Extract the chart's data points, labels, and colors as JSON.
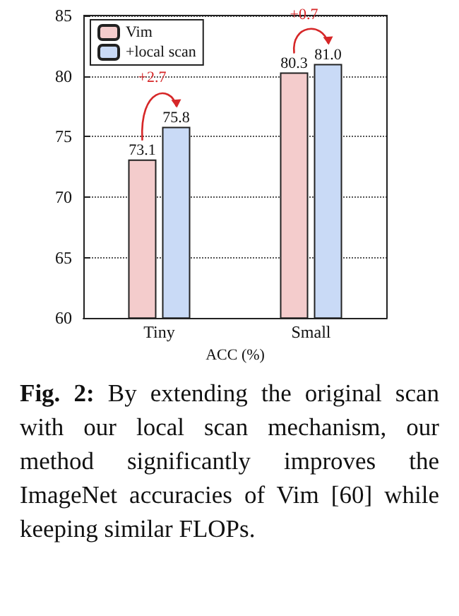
{
  "chart_data": {
    "type": "bar",
    "xlabel": "ACC (%)",
    "categories": [
      "Tiny",
      "Small"
    ],
    "series": [
      {
        "name": "Vim",
        "color": "#f4cccc",
        "values": [
          73.1,
          80.3
        ]
      },
      {
        "name": "+local scan",
        "color": "#c9daf6",
        "values": [
          75.8,
          81.0
        ]
      }
    ],
    "ylim": [
      60,
      85
    ],
    "yticks": [
      60,
      65,
      70,
      75,
      80,
      85
    ],
    "grid": "y",
    "legend": "top left",
    "value_labels": [
      [
        "73.1",
        "80.3"
      ],
      [
        "75.8",
        "81.0"
      ]
    ],
    "annotations": [
      "+2.7",
      "+0.7",
      "Fig. 2: By extending the original scan with our local scan mechanism, our method significantly improves the ImageNet accuracies of Vim [60] while keeping similar FLOPs."
    ]
  }
}
